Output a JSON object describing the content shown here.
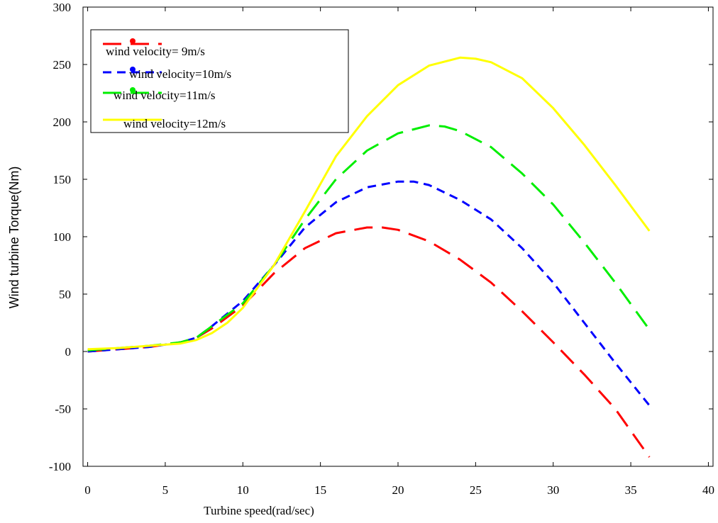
{
  "chart_data": {
    "type": "line",
    "xlabel": "Turbine speed(rad/sec)",
    "ylabel": "Wind turbine Torque(Nm)",
    "xlim": [
      -0.3,
      40.3
    ],
    "ylim": [
      -100,
      300
    ],
    "xticks": [
      0,
      5,
      10,
      15,
      20,
      25,
      30,
      35,
      40
    ],
    "yticks": [
      -100,
      -50,
      0,
      50,
      100,
      150,
      200,
      250,
      300
    ],
    "grid": false,
    "legend_position": "top-left",
    "series": [
      {
        "name": "wind velocity= 9m/s",
        "color": "#ff0000",
        "style": "long-dash",
        "x": [
          0,
          2,
          4,
          6,
          7,
          8,
          10,
          12,
          14,
          16,
          18,
          19,
          20,
          22,
          24,
          26,
          28,
          30,
          32,
          34,
          36.2
        ],
        "y": [
          0,
          2,
          4,
          8,
          12,
          20,
          40,
          68,
          90,
          103,
          108,
          108,
          106,
          96,
          80,
          60,
          35,
          8,
          -20,
          -50,
          -92
        ]
      },
      {
        "name": "wind velocity=10m/s",
        "color": "#0000ff",
        "style": "short-dash",
        "x": [
          0,
          2,
          4,
          6,
          7,
          8,
          10,
          12,
          14,
          16,
          18,
          20,
          21,
          22,
          24,
          26,
          28,
          30,
          32,
          34,
          36.2
        ],
        "y": [
          0,
          2,
          4,
          8,
          12,
          22,
          44,
          75,
          108,
          130,
          143,
          148,
          148,
          145,
          132,
          115,
          90,
          60,
          25,
          -10,
          -47
        ]
      },
      {
        "name": "wind velocity=11m/s",
        "color": "#00ee00",
        "style": "long-dash",
        "x": [
          0,
          2,
          4,
          6,
          7,
          8,
          10,
          12,
          14,
          16,
          18,
          20,
          22,
          23,
          24,
          26,
          28,
          30,
          32,
          34,
          36.2
        ],
        "y": [
          1,
          3,
          5,
          8,
          12,
          22,
          42,
          75,
          115,
          150,
          175,
          190,
          197,
          196,
          192,
          178,
          155,
          128,
          95,
          60,
          19
        ]
      },
      {
        "name": "wind velocity=12m/s",
        "color": "#ffff00",
        "style": "solid",
        "x": [
          0,
          2,
          4,
          6,
          7,
          8,
          9,
          10,
          12,
          14,
          16,
          18,
          20,
          22,
          24,
          25,
          26,
          28,
          30,
          32,
          34,
          36.2
        ],
        "y": [
          2,
          3,
          5,
          7,
          10,
          16,
          25,
          38,
          75,
          122,
          170,
          205,
          232,
          249,
          256,
          255,
          252,
          238,
          212,
          180,
          145,
          105
        ]
      }
    ]
  }
}
